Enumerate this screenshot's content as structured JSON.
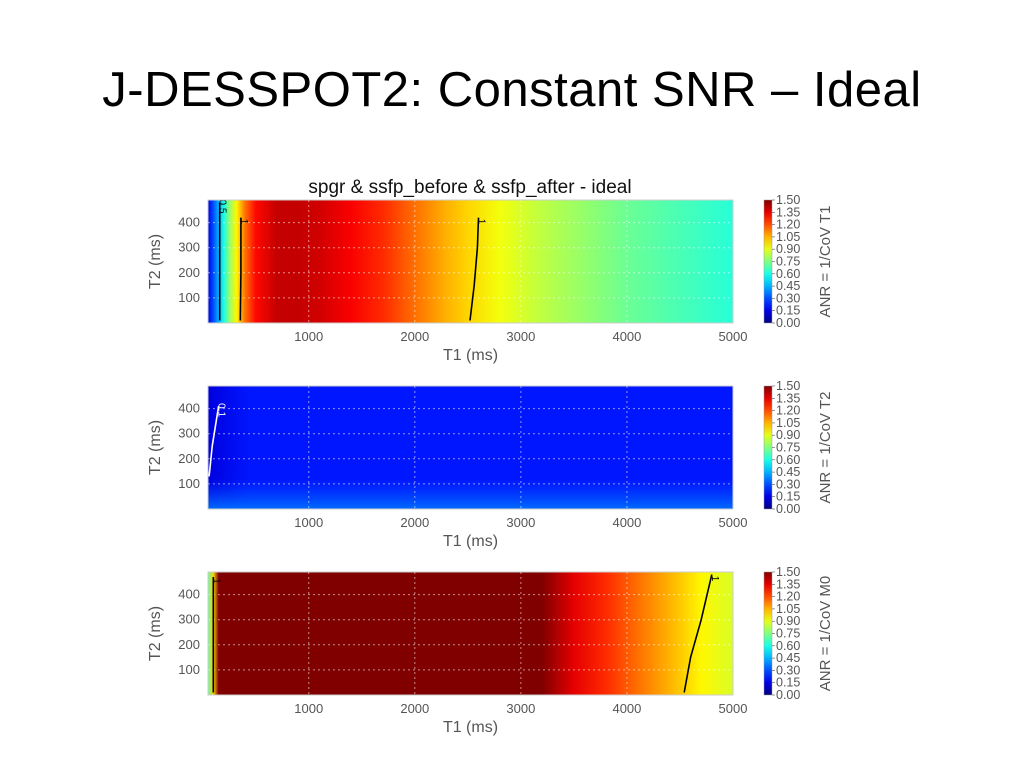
{
  "slide": {
    "title": "J-DESSPOT2: Constant SNR – Ideal"
  },
  "figure_title": "spgr & ssfp_before & ssfp_after - ideal",
  "chart_data": [
    {
      "type": "heatmap",
      "xlabel": "T1 (ms)",
      "ylabel": "T2 (ms)",
      "xlim": [
        50,
        5000
      ],
      "ylim": [
        0,
        490
      ],
      "xticks": [
        "1000",
        "2000",
        "3000",
        "4000",
        "5000"
      ],
      "yticks": [
        "100",
        "200",
        "300",
        "400"
      ],
      "grid": true,
      "colormap": "jet",
      "colorbar": {
        "label": "ANR = 1/CoV T1",
        "ticks": [
          "0.00",
          "0.15",
          "0.30",
          "0.45",
          "0.60",
          "0.75",
          "0.90",
          "1.05",
          "1.20",
          "1.35",
          "1.50"
        ],
        "range": [
          0,
          1.5
        ]
      },
      "profile_along_T1": {
        "t1": [
          50,
          100,
          150,
          200,
          260,
          320,
          400,
          500,
          700,
          900,
          1100,
          1400,
          1700,
          2000,
          2300,
          2500,
          2800,
          3200,
          3600,
          4000,
          4500,
          5000
        ],
        "values": [
          0.15,
          0.3,
          0.45,
          0.6,
          0.8,
          0.95,
          1.15,
          1.3,
          1.4,
          1.4,
          1.38,
          1.32,
          1.25,
          1.15,
          1.05,
          1.0,
          0.92,
          0.84,
          0.78,
          0.72,
          0.67,
          0.62
        ]
      },
      "contour_labels": [
        "0.5",
        "1",
        "1"
      ],
      "contours": [
        {
          "label": "0.5",
          "color": "#000000",
          "points": [
            [
              160,
              10
            ],
            [
              160,
              480
            ]
          ]
        },
        {
          "label": "1",
          "color": "#000000",
          "points": [
            [
              355,
              10
            ],
            [
              360,
              200
            ],
            [
              360,
              420
            ]
          ]
        },
        {
          "label": "1",
          "color": "#000000",
          "points": [
            [
              2520,
              10
            ],
            [
              2560,
              150
            ],
            [
              2590,
              300
            ],
            [
              2600,
              420
            ]
          ]
        }
      ]
    },
    {
      "type": "heatmap",
      "xlabel": "T1 (ms)",
      "ylabel": "T2 (ms)",
      "xlim": [
        50,
        5000
      ],
      "ylim": [
        0,
        490
      ],
      "xticks": [
        "1000",
        "2000",
        "3000",
        "4000",
        "5000"
      ],
      "yticks": [
        "100",
        "200",
        "300",
        "400"
      ],
      "grid": true,
      "colormap": "jet",
      "colorbar": {
        "label": "ANR = 1/CoV T2",
        "ticks": [
          "0.00",
          "0.15",
          "0.30",
          "0.45",
          "0.60",
          "0.75",
          "0.90",
          "1.05",
          "1.20",
          "1.35",
          "1.50"
        ],
        "range": [
          0,
          1.5
        ]
      },
      "approx_value": 0.22,
      "contour_labels": [
        "0.1"
      ],
      "contours": [
        {
          "label": "0.1",
          "color": "#ffffff",
          "points": [
            [
              60,
              130
            ],
            [
              90,
              250
            ],
            [
              120,
              330
            ],
            [
              150,
              410
            ]
          ]
        }
      ]
    },
    {
      "type": "heatmap",
      "xlabel": "T1 (ms)",
      "ylabel": "T2 (ms)",
      "xlim": [
        50,
        5000
      ],
      "ylim": [
        0,
        490
      ],
      "xticks": [
        "1000",
        "2000",
        "3000",
        "4000",
        "5000"
      ],
      "yticks": [
        "100",
        "200",
        "300",
        "400"
      ],
      "grid": true,
      "colormap": "jet",
      "colorbar": {
        "label": "ANR = 1/CoV M0",
        "ticks": [
          "0.00",
          "0.15",
          "0.30",
          "0.45",
          "0.60",
          "0.75",
          "0.90",
          "1.05",
          "1.20",
          "1.35",
          "1.50"
        ],
        "range": [
          0,
          1.5
        ]
      },
      "profile_along_T1": {
        "t1": [
          50,
          100,
          150,
          300,
          1000,
          2000,
          3000,
          3200,
          3500,
          3800,
          4100,
          4400,
          4700,
          5000
        ],
        "values": [
          0.7,
          1.0,
          1.5,
          1.5,
          1.5,
          1.5,
          1.5,
          1.5,
          1.35,
          1.25,
          1.15,
          1.05,
          0.95,
          0.88
        ]
      },
      "contour_labels": [
        "1",
        "1"
      ],
      "contours": [
        {
          "label": "1",
          "color": "#000000",
          "points": [
            [
              100,
              10
            ],
            [
              100,
              470
            ]
          ]
        },
        {
          "label": "1",
          "color": "#000000",
          "points": [
            [
              4540,
              10
            ],
            [
              4600,
              150
            ],
            [
              4700,
              300
            ],
            [
              4800,
              480
            ]
          ]
        }
      ]
    }
  ]
}
